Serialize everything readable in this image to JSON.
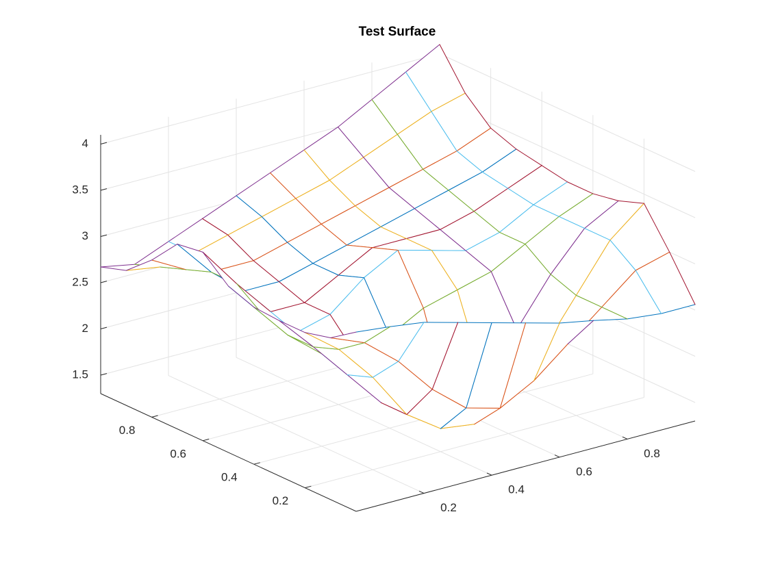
{
  "chart_data": {
    "type": "mesh",
    "title": "Test Surface",
    "x": [
      0,
      0.1,
      0.2,
      0.3,
      0.4,
      0.5,
      0.6,
      0.7,
      0.8,
      0.9,
      1
    ],
    "y": [
      0,
      0.1,
      0.2,
      0.3,
      0.4,
      0.5,
      0.6,
      0.7,
      0.8,
      0.9,
      1
    ],
    "z": [
      [
        3.24,
        3.2,
        3.15,
        3.05,
        2.95,
        2.85,
        2.75,
        2.68,
        2.6,
        2.56,
        2.56
      ],
      [
        3.05,
        2.9,
        2.6,
        2.2,
        1.9,
        1.8,
        2.0,
        2.3,
        2.6,
        2.9,
        3.0
      ],
      [
        2.98,
        2.7,
        2.3,
        1.8,
        1.55,
        1.5,
        1.7,
        2.1,
        2.6,
        3.1,
        3.4
      ],
      [
        2.98,
        2.6,
        2.2,
        1.8,
        1.6,
        1.6,
        1.8,
        2.2,
        2.7,
        3.1,
        3.3
      ],
      [
        3.0,
        2.6,
        2.3,
        2.2,
        2.3,
        2.5,
        2.6,
        2.7,
        2.9,
        3.1,
        3.25
      ],
      [
        3.1,
        2.7,
        2.4,
        2.5,
        2.8,
        3.0,
        2.9,
        2.8,
        2.9,
        3.1,
        3.25
      ],
      [
        3.34,
        2.9,
        2.5,
        2.5,
        2.7,
        2.9,
        2.9,
        2.9,
        3.0,
        3.15,
        3.3
      ],
      [
        3.3,
        2.9,
        2.6,
        2.6,
        2.7,
        2.8,
        2.9,
        3.0,
        3.1,
        3.2,
        3.35
      ],
      [
        3.0,
        2.8,
        2.7,
        2.7,
        2.8,
        2.9,
        3.0,
        3.1,
        3.2,
        3.3,
        3.45
      ],
      [
        2.76,
        2.7,
        2.75,
        2.85,
        2.95,
        3.05,
        3.15,
        3.3,
        3.45,
        3.6,
        3.7
      ],
      [
        2.67,
        2.6,
        2.75,
        2.9,
        3.05,
        3.2,
        3.35,
        3.5,
        3.7,
        3.9,
        4.1
      ]
    ],
    "colors": [
      "#0072BD",
      "#D95319",
      "#EDB120",
      "#7E2F8E",
      "#77AC30",
      "#4DBEEE",
      "#A2142F"
    ],
    "xlim": [
      0,
      1
    ],
    "ylim": [
      0,
      1
    ],
    "zlim": [
      1.3,
      4.1
    ],
    "xticks": [
      0.2,
      0.4,
      0.6,
      0.8
    ],
    "yticks": [
      0.2,
      0.4,
      0.6,
      0.8
    ],
    "zticks": [
      1.5,
      2,
      2.5,
      3,
      3.5,
      4
    ],
    "grid": true
  }
}
